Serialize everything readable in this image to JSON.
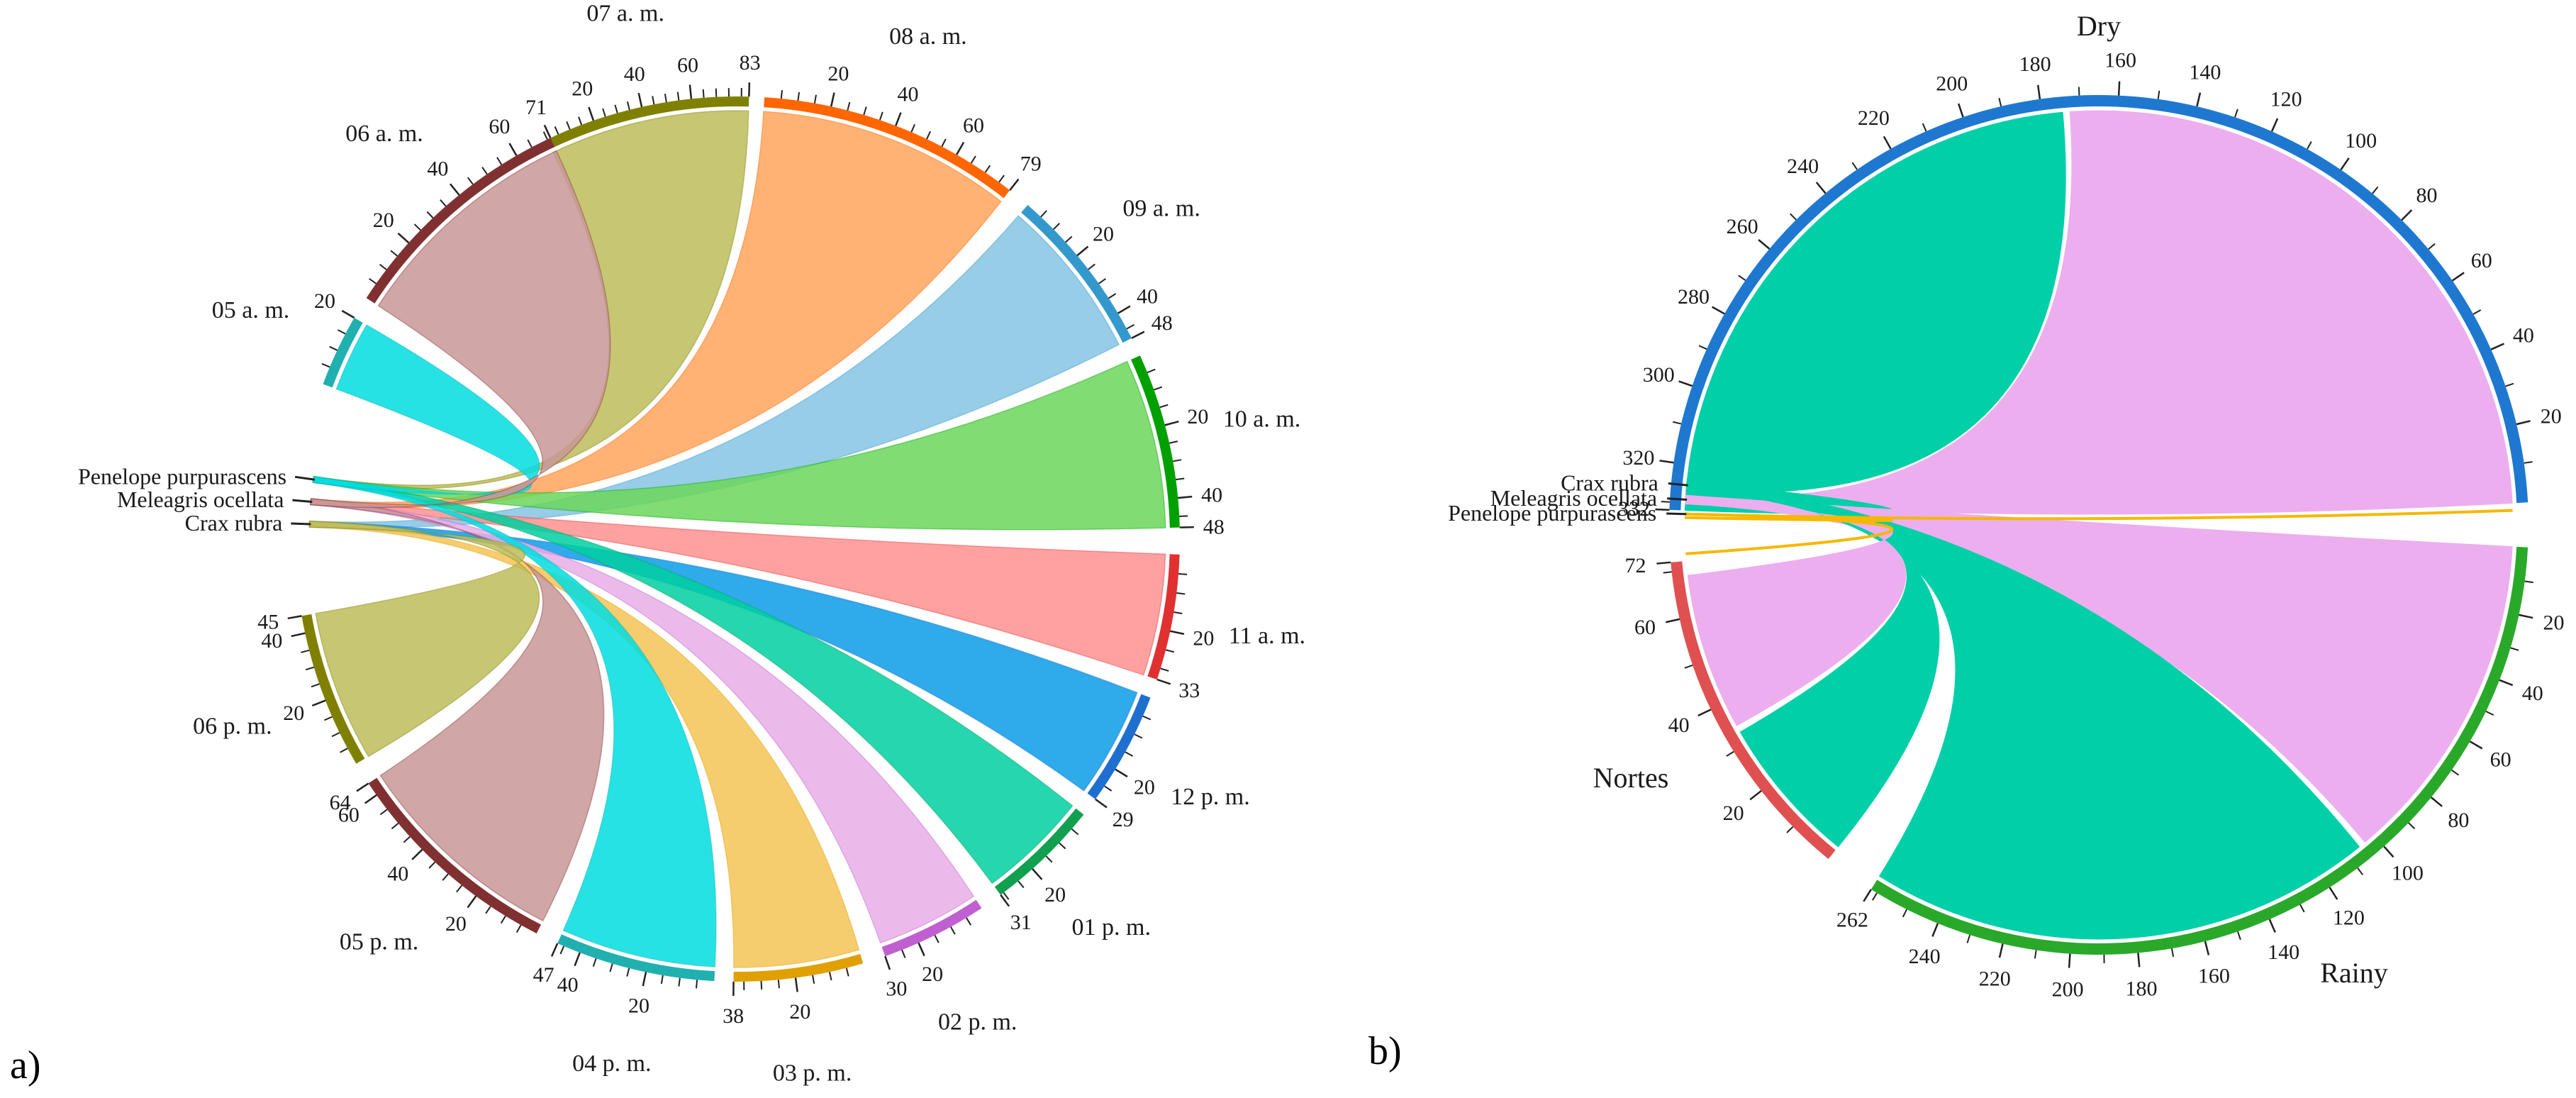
{
  "figure": {
    "panel_a_label": "a)",
    "panel_b_label": "b)"
  },
  "chart_data": [
    {
      "id": "a",
      "type": "chord",
      "title": "",
      "species": [
        {
          "name": "Penelope purpurascens",
          "value": 1,
          "color": "#a89b2a"
        },
        {
          "name": "Meleagris ocellata",
          "value": 1,
          "color": "#4d4d4d"
        },
        {
          "name": "Crax rubra",
          "value": 1,
          "color": "#555555"
        }
      ],
      "hours": [
        {
          "name": "07 a. m.",
          "value": 83,
          "color": "#808000",
          "fill": "#bcbc5a"
        },
        {
          "name": "08 a. m.",
          "value": 79,
          "color": "#ff6600",
          "fill": "#ffa55c"
        },
        {
          "name": "09 a. m.",
          "value": 48,
          "color": "#3399cc",
          "fill": "#85c4e3"
        },
        {
          "name": "10 a. m.",
          "value": 48,
          "color": "#00a000",
          "fill": "#6bd65b"
        },
        {
          "name": "11 a. m.",
          "value": 33,
          "color": "#e03030",
          "fill": "#ff9090"
        },
        {
          "name": "12 p. m.",
          "value": 29,
          "color": "#1e6fd0",
          "fill": "#0a9be8"
        },
        {
          "name": "01 p. m.",
          "value": 31,
          "color": "#10a050",
          "fill": "#00cfa0"
        },
        {
          "name": "02 p. m.",
          "value": 30,
          "color": "#c060d0",
          "fill": "#e8aee8"
        },
        {
          "name": "03 p. m.",
          "value": 38,
          "color": "#e0a000",
          "fill": "#f5c455"
        },
        {
          "name": "04 p. m.",
          "value": 47,
          "color": "#20b0b0",
          "fill": "#00dde0"
        },
        {
          "name": "05 p. m.",
          "value": 64,
          "color": "#803030",
          "fill": "#c89696"
        },
        {
          "name": "06 p. m.",
          "value": 45,
          "color": "#808000",
          "fill": "#bcbc5a"
        },
        {
          "name": "05 a. m.",
          "value": 20,
          "color": "#20b0b0",
          "fill": "#00dde0"
        },
        {
          "name": "06 a. m.",
          "value": 71,
          "color": "#803030",
          "fill": "#c89696"
        }
      ],
      "ticks": {
        "07 a. m.": [
          "20",
          "40",
          "60",
          "83"
        ],
        "08 a. m.": [
          "20",
          "40",
          "60",
          "79"
        ],
        "09 a. m.": [
          "20",
          "40",
          "48"
        ],
        "10 a. m.": [
          "20",
          "40",
          "48"
        ],
        "11 a. m.": [
          "20",
          "33"
        ],
        "12 p. m.": [
          "20",
          "29"
        ],
        "01 p. m.": [
          "20",
          "31"
        ],
        "02 p. m.": [
          "20",
          "30"
        ],
        "03 p. m.": [
          "20",
          "38"
        ],
        "04 p. m.": [
          "20",
          "40",
          "47"
        ],
        "05 p. m.": [
          "20",
          "40",
          "60",
          "64"
        ],
        "06 p. m.": [
          "20",
          "40",
          "45"
        ],
        "05 a. m.": [
          "20"
        ],
        "06 a. m.": [
          "20",
          "40",
          "60",
          "71"
        ]
      }
    },
    {
      "id": "b",
      "type": "chord",
      "title": "",
      "species": [
        {
          "name": "Crax rubra",
          "value": 2,
          "color": "#f5b800"
        },
        {
          "name": "Meleagris ocellata",
          "value": 2,
          "color": "#888888"
        },
        {
          "name": "Penelope purpurascens",
          "value": 2,
          "color": "#f0c040"
        }
      ],
      "seasons": [
        {
          "name": "Dry",
          "value": 332,
          "color": "#1e78d0"
        },
        {
          "name": "Rainy",
          "value": 262,
          "color": "#2aa82a"
        },
        {
          "name": "Nortes",
          "value": 72,
          "color": "#e05050"
        }
      ],
      "ticks": {
        "Dry": [
          "20",
          "40",
          "60",
          "80",
          "100",
          "120",
          "140",
          "160",
          "180",
          "200",
          "220",
          "240",
          "260",
          "280",
          "300",
          "320",
          "332"
        ],
        "Rainy": [
          "20",
          "40",
          "60",
          "80",
          "100",
          "120",
          "140",
          "160",
          "180",
          "200",
          "220",
          "240",
          "262"
        ],
        "Nortes": [
          "20",
          "40",
          "60",
          "72"
        ]
      },
      "ribbons": [
        {
          "label": "Meleagris ocellata – Dry",
          "color": "#ecaeee",
          "value": 171
        },
        {
          "label": "Crax rubra – Dry",
          "color": "#00cfa8",
          "value": 155
        },
        {
          "label": "Meleagris ocellata – Rainy",
          "color": "#ecaeee",
          "value": 88
        },
        {
          "label": "Crax rubra – Rainy",
          "color": "#00cfa8",
          "value": 172
        },
        {
          "label": "Crax rubra – Nortes",
          "color": "#00cfa8",
          "value": 40
        },
        {
          "label": "Meleagris ocellata – Nortes",
          "color": "#ecaeee",
          "value": 30
        }
      ]
    }
  ]
}
